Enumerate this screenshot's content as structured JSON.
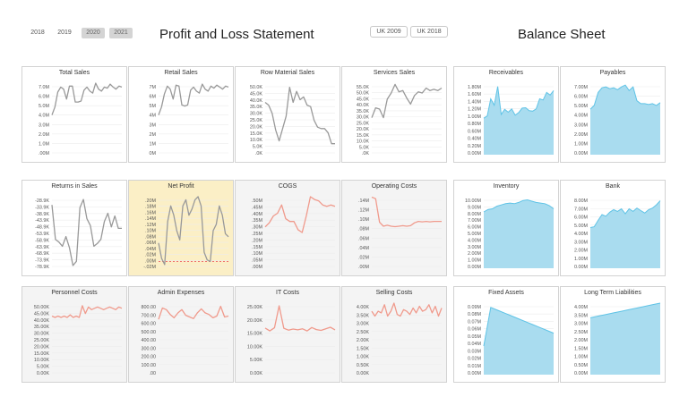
{
  "filters": {
    "years": [
      "2018",
      "2019",
      "2020",
      "2021"
    ],
    "selected_years": [
      "2020",
      "2021"
    ],
    "regions": [
      "UK 2009",
      "UK 2018"
    ]
  },
  "header": {
    "pl_title": "Profit and Loss Statement",
    "bs_title": "Balance Sheet"
  },
  "colors": {
    "gray_line": "#999999",
    "salmon_line": "#f09a8c",
    "blue_fill": "#a9dcef",
    "blue_line": "#5fc3e6",
    "highlight": "#fbefc6",
    "target_line": "#ee5c60"
  },
  "chart_data": [
    {
      "id": "total-sales",
      "type": "line",
      "title": "Total Sales",
      "color": "gray",
      "yticks": [
        "7.0M",
        "6.0M",
        "5.0M",
        "4.0M",
        "3.0M",
        "2.0M",
        "1.0M",
        ".00M"
      ],
      "ylim": [
        0,
        7.2
      ],
      "values": [
        4.0,
        4.8,
        6.3,
        6.8,
        6.6,
        5.6,
        6.9,
        6.9,
        5.3,
        5.3,
        5.4,
        6.5,
        6.8,
        6.4,
        6.2,
        7.2,
        6.6,
        6.4,
        6.8,
        6.7,
        7.1,
        6.8,
        6.6,
        6.9,
        6.8
      ]
    },
    {
      "id": "retail-sales",
      "type": "line",
      "title": "Retail Sales",
      "color": "gray",
      "yticks": [
        "7M",
        "6M",
        "5M",
        "4M",
        "3M",
        "2M",
        "1M",
        "0M"
      ],
      "ylim": [
        0,
        7.2
      ],
      "values": [
        4.0,
        4.8,
        6.1,
        6.9,
        6.6,
        5.6,
        7.0,
        6.9,
        5.0,
        4.9,
        5.0,
        6.5,
        6.8,
        6.4,
        6.2,
        7.1,
        6.6,
        6.4,
        6.9,
        6.7,
        7.0,
        6.8,
        6.6,
        6.9,
        6.8
      ]
    },
    {
      "id": "row-material-sales",
      "type": "line",
      "title": "Row Material Sales",
      "color": "gray",
      "yticks": [
        "50.0K",
        "45.0K",
        "40.0K",
        "35.0K",
        "30.0K",
        "25.0K",
        "20.0K",
        "15.0K",
        "10.0K",
        "5.0K",
        ".0K"
      ],
      "ylim": [
        0,
        52
      ],
      "values": [
        38,
        36,
        30,
        18,
        10,
        19,
        28,
        49,
        38,
        46,
        40,
        42,
        36,
        35,
        25,
        20,
        19,
        19,
        16,
        8,
        8
      ]
    },
    {
      "id": "services-sales",
      "type": "line",
      "title": "Services Sales",
      "color": "gray",
      "yticks": [
        "55.0K",
        "50.0K",
        "45.0K",
        "40.0K",
        "35.0K",
        "30.0K",
        "25.0K",
        "20.0K",
        "15.0K",
        "10.0K",
        "5.0K",
        ".0K"
      ],
      "ylim": [
        0,
        58
      ],
      "values": [
        30,
        38,
        37,
        30,
        45,
        50,
        57,
        51,
        52,
        46,
        41,
        48,
        51,
        50,
        54,
        52,
        53,
        52,
        54
      ]
    },
    {
      "id": "returns-in-sales",
      "type": "line",
      "title": "Returns in Sales",
      "color": "gray",
      "yticks": [
        "-28.9K",
        "-33.9K",
        "-38.9K",
        "-43.9K",
        "-48.9K",
        "-53.9K",
        "-58.9K",
        "-63.9K",
        "-68.9K",
        "-73.9K",
        "-78.9K"
      ],
      "ylim": [
        -79,
        -27
      ],
      "values": [
        -33,
        -58,
        -60,
        -63,
        -56,
        -64,
        -77,
        -74,
        -35,
        -29,
        -43,
        -48,
        -63,
        -61,
        -58,
        -45,
        -39,
        -49,
        -41,
        -50,
        -50
      ]
    },
    {
      "id": "net-profit",
      "type": "line",
      "title": "Net Profit",
      "color": "gray",
      "target": 0,
      "target_label": "dashed zero line",
      "yticks": [
        ".20M",
        ".18M",
        ".16M",
        ".14M",
        ".12M",
        ".10M",
        ".08M",
        ".06M",
        ".04M",
        ".02M",
        ".00M",
        "-.02M"
      ],
      "ylim": [
        -0.022,
        0.21
      ],
      "values": [
        0.06,
        0.01,
        -0.01,
        0.13,
        0.18,
        0.15,
        0.1,
        0.07,
        0.18,
        0.2,
        0.15,
        0.17,
        0.2,
        0.21,
        0.18,
        0.03,
        0.005,
        0.0,
        0.1,
        0.12,
        0.18,
        0.15,
        0.09,
        0.08
      ]
    },
    {
      "id": "cogs",
      "type": "line",
      "title": "COGS",
      "color": "salmon",
      "yticks": [
        ".50M",
        ".45M",
        ".40M",
        ".35M",
        ".30M",
        ".25M",
        ".20M",
        ".15M",
        ".10M",
        ".05M",
        ".00M"
      ],
      "ylim": [
        0,
        0.52
      ],
      "values": [
        0.3,
        0.33,
        0.38,
        0.4,
        0.46,
        0.36,
        0.34,
        0.34,
        0.28,
        0.26,
        0.38,
        0.52,
        0.5,
        0.49,
        0.46,
        0.45,
        0.46,
        0.45
      ]
    },
    {
      "id": "operating-costs",
      "type": "line",
      "title": "Operating Costs",
      "color": "salmon",
      "yticks": [
        ".14M",
        ".12M",
        ".10M",
        ".08M",
        ".06M",
        ".04M",
        ".02M",
        ".00M"
      ],
      "ylim": [
        0,
        0.148
      ],
      "values": [
        0.147,
        0.144,
        0.095,
        0.087,
        0.089,
        0.087,
        0.086,
        0.087,
        0.088,
        0.087,
        0.088,
        0.094,
        0.097,
        0.096,
        0.097,
        0.096,
        0.097,
        0.097,
        0.097
      ]
    },
    {
      "id": "personnel-costs",
      "type": "line",
      "title": "Personnel Costs",
      "color": "salmon",
      "yticks": [
        "50.00K",
        "45.00K",
        "40.00K",
        "35.00K",
        "30.00K",
        "25.00K",
        "20.00K",
        "15.00K",
        "10.00K",
        "5.00K",
        "0.00K"
      ],
      "ylim": [
        0,
        55
      ],
      "values": [
        45,
        44,
        45,
        44,
        45,
        44,
        46,
        44,
        45,
        44,
        53,
        47,
        52,
        50,
        51,
        52,
        51,
        50,
        51,
        52,
        51,
        50,
        52,
        51
      ]
    },
    {
      "id": "admin-expenses",
      "type": "line",
      "title": "Admin Expenses",
      "color": "salmon",
      "yticks": [
        "800.00",
        "700.00",
        "600.00",
        "500.00",
        "400.00",
        "300.00",
        "200.00",
        "100.00",
        ".00"
      ],
      "ylim": [
        0,
        880
      ],
      "values": [
        680,
        820,
        800,
        740,
        700,
        760,
        800,
        730,
        710,
        690,
        760,
        810,
        760,
        740,
        700,
        720,
        840,
        710,
        720
      ]
    },
    {
      "id": "it-costs",
      "type": "line",
      "title": "IT Costs",
      "color": "salmon",
      "yticks": [
        "25.00K",
        "20.00K",
        "15.00K",
        "10.00K",
        "5.00K",
        "0.00K"
      ],
      "ylim": [
        0,
        27
      ],
      "values": [
        17.6,
        16.5,
        17.7,
        26.0,
        17.5,
        16.8,
        17.2,
        16.9,
        17.3,
        16.5,
        17.8,
        17.0,
        16.7,
        17.3,
        17.9,
        16.9
      ]
    },
    {
      "id": "selling-costs",
      "type": "line",
      "title": "Selling Costs",
      "color": "salmon",
      "yticks": [
        "4.00K",
        "3.50K",
        "3.00K",
        "2.50K",
        "2.00K",
        "1.50K",
        "1.00K",
        "0.50K",
        "0.00K"
      ],
      "ylim": [
        0,
        4.4
      ],
      "values": [
        3.9,
        3.6,
        3.9,
        3.8,
        4.3,
        3.6,
        3.9,
        4.4,
        3.7,
        3.6,
        4.0,
        3.9,
        3.7,
        4.1,
        3.8,
        4.2,
        3.9,
        4.0,
        4.3,
        3.8,
        4.2,
        3.6,
        4.1
      ]
    },
    {
      "id": "receivables",
      "type": "area",
      "title": "Receivables",
      "color": "blue",
      "yticks": [
        "1.80M",
        "1.60M",
        "1.40M",
        "1.20M",
        "1.00M",
        "0.80M",
        "0.60M",
        "0.40M",
        "0.20M",
        "0.00M"
      ],
      "ylim": [
        0,
        1.92
      ],
      "values": [
        0.98,
        1.04,
        1.5,
        1.33,
        1.83,
        1.08,
        1.22,
        1.14,
        1.23,
        1.06,
        1.13,
        1.25,
        1.26,
        1.18,
        1.17,
        1.23,
        1.5,
        1.47,
        1.67,
        1.6,
        1.72
      ]
    },
    {
      "id": "payables",
      "type": "area",
      "title": "Payables",
      "color": "blue",
      "yticks": [
        "7.00M",
        "6.00M",
        "5.00M",
        "4.00M",
        "3.00M",
        "2.00M",
        "1.00M",
        "0.00M"
      ],
      "ylim": [
        0,
        7.7
      ],
      "values": [
        4.9,
        5.3,
        6.7,
        7.2,
        7.3,
        7.1,
        7.2,
        7.0,
        7.3,
        7.5,
        6.9,
        7.3,
        5.8,
        5.5,
        5.5,
        5.4,
        5.5,
        5.3,
        5.6
      ]
    },
    {
      "id": "inventory",
      "type": "area",
      "title": "Inventory",
      "color": "blue",
      "yticks": [
        "10.00M",
        "9.00M",
        "8.00M",
        "7.00M",
        "6.00M",
        "5.00M",
        "4.00M",
        "3.00M",
        "2.00M",
        "1.00M",
        "0.00M"
      ],
      "ylim": [
        0,
        11.3
      ],
      "values": [
        8.9,
        9.3,
        9.4,
        9.8,
        10.0,
        10.2,
        10.3,
        10.2,
        10.4,
        10.7,
        10.8,
        10.6,
        10.4,
        10.3,
        10.2,
        9.9,
        9.4
      ]
    },
    {
      "id": "bank",
      "type": "area",
      "title": "Bank",
      "color": "blue",
      "yticks": [
        "8.00M",
        "7.00M",
        "6.00M",
        "5.00M",
        "4.00M",
        "3.00M",
        "2.00M",
        "1.00M",
        "0.00M"
      ],
      "ylim": [
        0,
        8.8
      ],
      "values": [
        5.0,
        5.1,
        5.9,
        6.6,
        6.4,
        6.9,
        7.2,
        7.0,
        7.3,
        6.7,
        7.3,
        7.0,
        7.4,
        7.1,
        6.8,
        7.2,
        7.4,
        7.8,
        8.3
      ]
    },
    {
      "id": "fixed-assets",
      "type": "area",
      "title": "Fixed Assets",
      "color": "blue",
      "yticks": [
        "0.09M",
        "0.08M",
        "0.07M",
        "0.06M",
        "0.05M",
        "0.04M",
        "0.03M",
        "0.02M",
        "0.01M",
        "0.00M"
      ],
      "ylim": [
        0,
        0.1
      ],
      "values": [
        0.04,
        0.094,
        0.09,
        0.086,
        0.082,
        0.078,
        0.074,
        0.07,
        0.066,
        0.062,
        0.058
      ]
    },
    {
      "id": "long-term-liabilities",
      "type": "area",
      "title": "Long Term Liabilities",
      "color": "blue",
      "yticks": [
        "4.00M",
        "3.50M",
        "3.00M",
        "2.50M",
        "2.00M",
        "1.50M",
        "1.00M",
        "0.50M",
        "0.00M"
      ],
      "ylim": [
        0,
        4.4
      ],
      "values": [
        3.5,
        3.6,
        3.7,
        3.8,
        3.9,
        4.0,
        4.1,
        4.2,
        4.3,
        4.4
      ]
    }
  ]
}
